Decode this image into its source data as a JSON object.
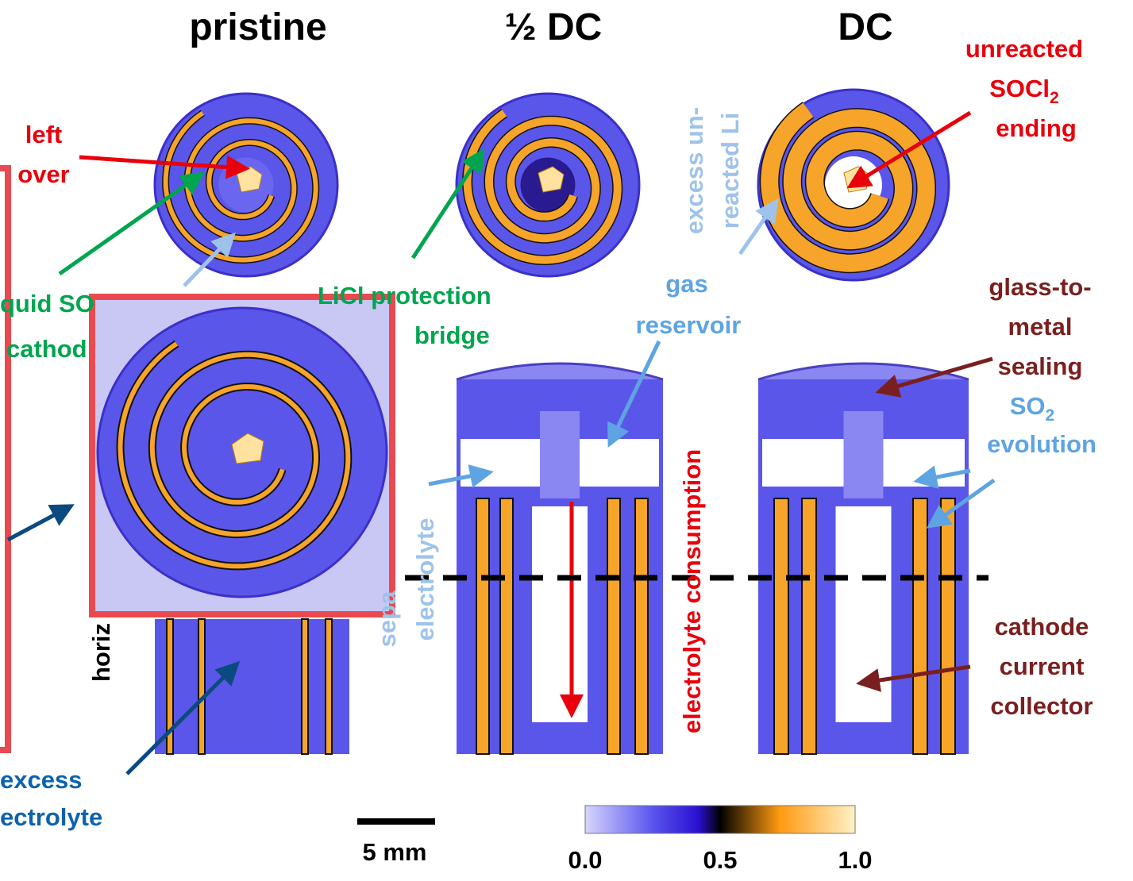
{
  "titles": [
    "pristine",
    "½ DC",
    "DC"
  ],
  "labels": {
    "unreacted": {
      "line1": "unreacted",
      "formula": "SOCl",
      "formula_sub": "2",
      "line3": "ending"
    },
    "left_over": [
      "left",
      "over"
    ],
    "excess_li": [
      "excess un-",
      "reacted Li"
    ],
    "liquid_cathode": [
      "quid SO",
      "cathod"
    ],
    "licl": [
      "LiCl protection",
      "bridge"
    ],
    "gas_reservoir": [
      "gas",
      "reservoir"
    ],
    "sealing": [
      "glass-to-",
      "metal",
      "sealing"
    ],
    "so2": {
      "formula": "SO",
      "formula_sub": "2",
      "line2": "evolution"
    },
    "consumption": "electrolyte consumption",
    "separator": [
      "sepa",
      "electrolyte"
    ],
    "horizontal": "horiz",
    "collector": [
      "cathode",
      "current",
      "collector"
    ],
    "excess_electrolyte": [
      "excess",
      "ectrolyte"
    ]
  },
  "scale_bar": "5 mm",
  "colorbar": {
    "lim": [
      0,
      1
    ],
    "ticks": [
      {
        "value": 0,
        "label": "0.0"
      },
      {
        "value": 0.5,
        "label": "0.5"
      },
      {
        "value": 1,
        "label": "1.0"
      }
    ]
  }
}
